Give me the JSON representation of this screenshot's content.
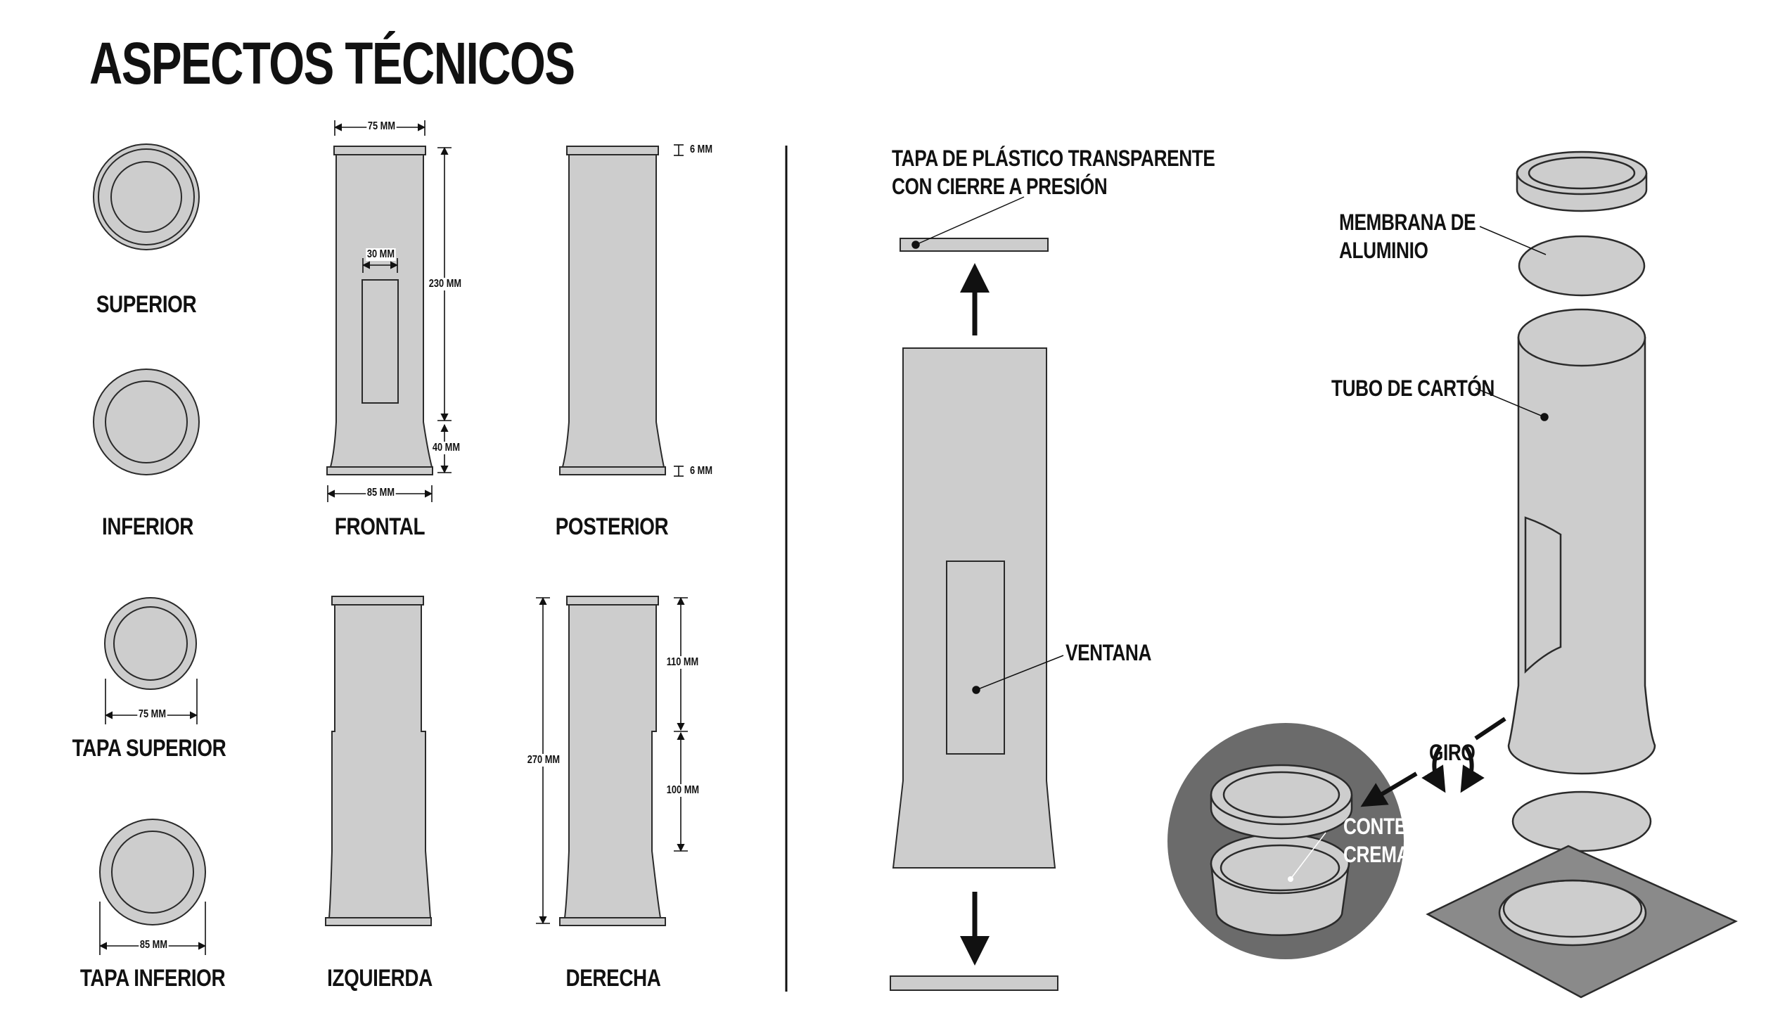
{
  "title": "ASPECTOS TÉCNICOS",
  "views": {
    "superior": "SUPERIOR",
    "inferior": "INFERIOR",
    "frontal": "FRONTAL",
    "posterior": "POSTERIOR",
    "tapa_superior": "TAPA SUPERIOR",
    "tapa_inferior": "TAPA INFERIOR",
    "izquierda": "IZQUIERDA",
    "derecha": "DERECHA"
  },
  "dimensions": {
    "frontal_top_width": "75 MM",
    "frontal_window_width": "30 MM",
    "frontal_height": "230 MM",
    "frontal_base_height": "40 MM",
    "frontal_base_width": "85 MM",
    "posterior_top_cap": "6 MM",
    "posterior_bottom_cap": "6 MM",
    "tapa_superior_diameter": "75 MM",
    "tapa_inferior_diameter": "85 MM",
    "derecha_total": "270 MM",
    "derecha_upper": "110 MM",
    "derecha_lower": "100 MM"
  },
  "callouts": {
    "tapa_plastico": "TAPA DE PLÁSTICO TRANSPARENTE\nCON CIERRE A PRESIÓN",
    "ventana": "VENTANA",
    "membrana": "MEMBRANA DE\nALUMINIO",
    "tubo": "TUBO DE CARTÓN",
    "giro": "GIRO",
    "contenedor": "CONTENEDOR DE\nCREMAS DULCES"
  },
  "colors": {
    "part_fill": "#cdcdcd",
    "stroke": "#2a2a2a",
    "dark_circle": "#6b6b6b",
    "base_plate": "#8a8a8a"
  }
}
